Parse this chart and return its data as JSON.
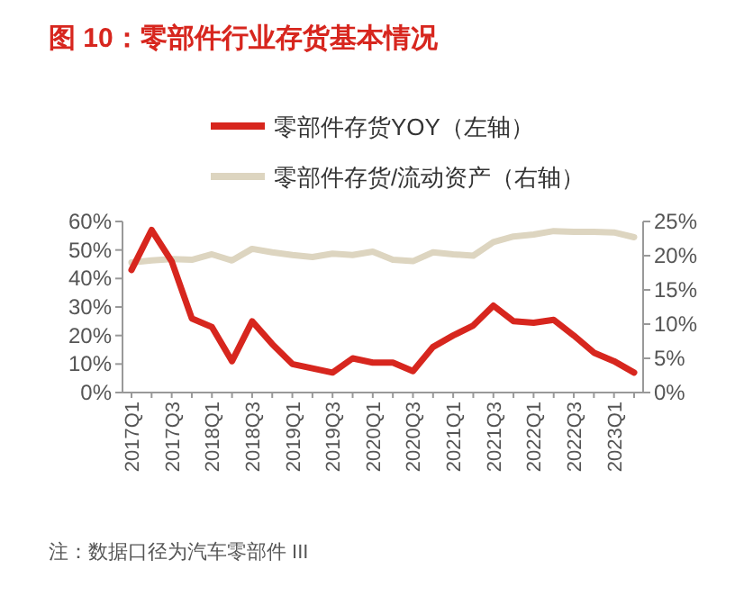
{
  "chart_data": {
    "type": "line",
    "title": "图 10：零部件行业存货基本情况",
    "categories": [
      "2017Q1",
      null,
      "2017Q3",
      null,
      "2018Q1",
      null,
      "2018Q3",
      null,
      "2019Q1",
      null,
      "2019Q3",
      null,
      "2020Q1",
      null,
      "2020Q3",
      null,
      "2021Q1",
      null,
      "2021Q3",
      null,
      "2022Q1",
      null,
      "2022Q3",
      null,
      "2023Q1",
      null
    ],
    "series": [
      {
        "name": "零部件存货YOY（左轴）",
        "color": "#d7261e",
        "values": [
          43,
          57,
          46,
          26,
          23,
          11,
          25,
          17,
          10,
          8.5,
          7,
          12,
          10.5,
          10.5,
          7.5,
          16,
          20,
          23.5,
          30.5,
          25,
          24.5,
          25.5,
          20,
          14,
          11,
          7
        ]
      },
      {
        "name": "零部件存货/流动资产（右轴）",
        "color": "#ddd5c0",
        "axis": "y2",
        "values": [
          19,
          19.3,
          19.5,
          19.4,
          20.2,
          19.3,
          21,
          20.5,
          20.1,
          19.8,
          20.3,
          20.1,
          20.6,
          19.4,
          19.2,
          20.5,
          20.2,
          20,
          22,
          22.8,
          23.1,
          23.6,
          23.5,
          23.5,
          23.4,
          22.7
        ]
      }
    ],
    "ylim": [
      0,
      60
    ],
    "yticks": [
      {
        "value": 0,
        "label": "0%"
      },
      {
        "value": 10,
        "label": "10%"
      },
      {
        "value": 20,
        "label": "20%"
      },
      {
        "value": 30,
        "label": "30%"
      },
      {
        "value": 40,
        "label": "40%"
      },
      {
        "value": 50,
        "label": "50%"
      },
      {
        "value": 60,
        "label": "60%"
      }
    ],
    "y2lim": [
      0,
      25
    ],
    "y2ticks": [
      {
        "value": 0,
        "label": "0%"
      },
      {
        "value": 5,
        "label": "5%"
      },
      {
        "value": 10,
        "label": "10%"
      },
      {
        "value": 15,
        "label": "15%"
      },
      {
        "value": 20,
        "label": "20%"
      },
      {
        "value": 25,
        "label": "25%"
      }
    ],
    "grid": false,
    "legend": "top",
    "marker": "none",
    "line_style": "solid",
    "annotations": [
      "注：数据口径为汽车零部件 III"
    ]
  }
}
